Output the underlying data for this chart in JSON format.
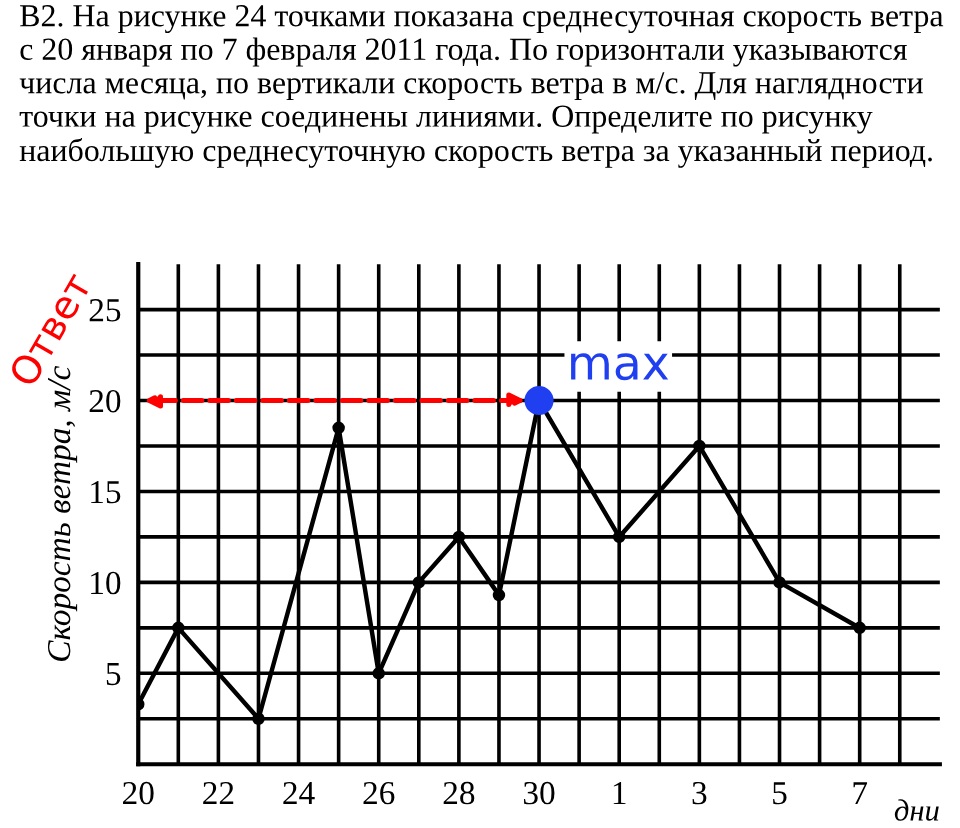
{
  "chart_data": {
    "type": "line",
    "title": "B2. На рисунке 24 точками показана среднесуточная скорость ветра с 20 января по 7 февраля 2011 года. По горизонтали указываются числа месяца, по вертикали скорость ветра в м/с. Для наглядности точки на рисунке соединены линиями. Определите по рисунку наибольшую среднесуточную скорость ветра за указанный период.",
    "xlabel": "дни",
    "ylabel": "Скорость ветра, м/с",
    "categories": [
      "20",
      null,
      "22",
      null,
      "24",
      null,
      "26",
      null,
      "28",
      null,
      "30",
      null,
      "1",
      null,
      "3",
      null,
      "5",
      null,
      "7"
    ],
    "series": [
      {
        "color": "#000000",
        "values": [
          3.3,
          7.5,
          null,
          2.5,
          null,
          18.5,
          5,
          10,
          12.5,
          9.3,
          20,
          null,
          12.5,
          null,
          17.5,
          null,
          10,
          null,
          7.5
        ]
      },
      {
        "type": "scatter",
        "color": "#1f3ff0",
        "values": [
          null,
          null,
          null,
          null,
          null,
          null,
          null,
          null,
          null,
          null,
          20,
          null,
          null,
          null,
          null,
          null,
          null,
          null,
          null
        ]
      }
    ],
    "ylim": [
      0,
      27.5
    ],
    "yticks": [
      {
        "value": 2.5,
        "label": null
      },
      5,
      {
        "value": 7.5,
        "label": null
      },
      10,
      {
        "value": 12.5,
        "label": null
      },
      15,
      {
        "value": 17.5,
        "label": null
      },
      20,
      {
        "value": 22.5,
        "label": null
      },
      25
    ],
    "grid": true,
    "marker": "circle",
    "line_style": "solid",
    "annotations": [
      "max",
      "Ответ"
    ]
  }
}
